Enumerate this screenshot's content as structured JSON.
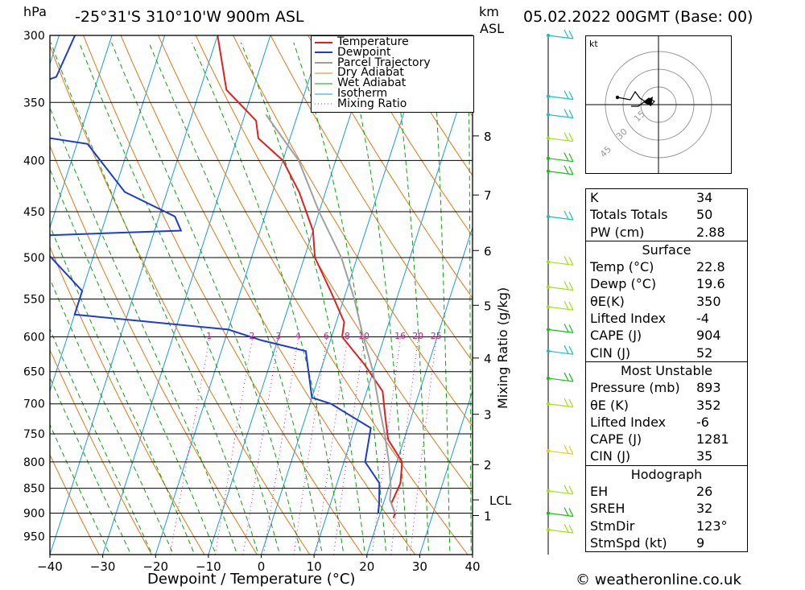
{
  "header": {
    "hpa_unit": "hPa",
    "location": "-25°31'S 310°10'W 900m ASL",
    "km_unit": "km",
    "asl_unit": "ASL",
    "datetime": "05.02.2022 00GMT (Base: 00)"
  },
  "footer": {
    "copyright": "© weatheronline.co.uk"
  },
  "colors": {
    "temperature": "#e02020",
    "dewpoint": "#1c3cd0",
    "parcel": "#a0a0a0",
    "dry_adiabat": "#e07818",
    "wet_adiabat": "#10a010",
    "isotherm": "#1c9ad8",
    "mixing_ratio": "#d0189c",
    "wind_cyan": "#18c0c0",
    "wind_green": "#18c018",
    "wind_lime": "#a0e018",
    "wind_yellow": "#e0d010"
  },
  "chart_data": [
    {
      "type": "line",
      "subtype": "skew-t log-p sounding",
      "xlabel": "Dewpoint / Temperature (°C)",
      "ylabel": "hPa",
      "mixing_ratio_axis_label": "Mixing Ratio (g/kg)",
      "xlim": [
        -40,
        40
      ],
      "ylim_hpa": [
        990,
        300
      ],
      "x_ticks": [
        "−40",
        "−30",
        "−20",
        "−10",
        "0",
        "10",
        "20",
        "30",
        "40"
      ],
      "pressure_levels": [
        300,
        350,
        400,
        450,
        500,
        550,
        600,
        650,
        700,
        750,
        800,
        850,
        900,
        950
      ],
      "km_ticks": [
        {
          "label": "8",
          "p": 378
        },
        {
          "label": "7",
          "p": 433
        },
        {
          "label": "6",
          "p": 492
        },
        {
          "label": "5",
          "p": 558
        },
        {
          "label": "4",
          "p": 630
        },
        {
          "label": "3",
          "p": 717
        },
        {
          "label": "2",
          "p": 805
        },
        {
          "label": "1",
          "p": 905
        }
      ],
      "lcl": {
        "label": "LCL",
        "p": 873
      },
      "mixing_ratio_labels": [
        "1",
        "2",
        "3",
        "4",
        "6",
        "8",
        "10",
        "16",
        "20",
        "25"
      ],
      "legend": [
        "Temperature",
        "Dewpoint",
        "Parcel Trajectory",
        "Dry Adiabat",
        "Wet Adiabat",
        "Isotherm",
        "Mixing Ratio"
      ],
      "series": [
        {
          "name": "Temperature",
          "points": [
            {
              "p": 300,
              "t": -40
            },
            {
              "p": 340,
              "t": -35
            },
            {
              "p": 365,
              "t": -27.5
            },
            {
              "p": 380,
              "t": -26
            },
            {
              "p": 400,
              "t": -20
            },
            {
              "p": 430,
              "t": -15
            },
            {
              "p": 470,
              "t": -10
            },
            {
              "p": 500,
              "t": -8
            },
            {
              "p": 540,
              "t": -3
            },
            {
              "p": 580,
              "t": 1.5
            },
            {
              "p": 600,
              "t": 2
            },
            {
              "p": 640,
              "t": 8
            },
            {
              "p": 680,
              "t": 13
            },
            {
              "p": 720,
              "t": 15
            },
            {
              "p": 760,
              "t": 17
            },
            {
              "p": 800,
              "t": 21
            },
            {
              "p": 840,
              "t": 22
            },
            {
              "p": 880,
              "t": 21.5
            },
            {
              "p": 900,
              "t": 22.8
            },
            {
              "p": 910,
              "t": 22.8
            }
          ]
        },
        {
          "name": "Dewpoint",
          "points": [
            {
              "p": 300,
              "t": -67
            },
            {
              "p": 330,
              "t": -68
            },
            {
              "p": 350,
              "t": -80
            },
            {
              "p": 365,
              "t": -88
            },
            {
              "p": 385,
              "t": -58
            },
            {
              "p": 430,
              "t": -48
            },
            {
              "p": 455,
              "t": -37
            },
            {
              "p": 470,
              "t": -35
            },
            {
              "p": 475,
              "t": -60
            },
            {
              "p": 490,
              "t": -60
            },
            {
              "p": 540,
              "t": -50
            },
            {
              "p": 570,
              "t": -50
            },
            {
              "p": 590,
              "t": -20
            },
            {
              "p": 605,
              "t": -13
            },
            {
              "p": 620,
              "t": -4
            },
            {
              "p": 690,
              "t": 0
            },
            {
              "p": 700,
              "t": 4
            },
            {
              "p": 740,
              "t": 13
            },
            {
              "p": 800,
              "t": 14
            },
            {
              "p": 840,
              "t": 18
            },
            {
              "p": 880,
              "t": 19.2
            },
            {
              "p": 900,
              "t": 19.6
            }
          ]
        },
        {
          "name": "Parcel Trajectory",
          "points": [
            {
              "p": 360,
              "t": -26
            },
            {
              "p": 400,
              "t": -17
            },
            {
              "p": 450,
              "t": -10
            },
            {
              "p": 500,
              "t": -3
            },
            {
              "p": 550,
              "t": 2
            },
            {
              "p": 600,
              "t": 6
            },
            {
              "p": 650,
              "t": 10
            },
            {
              "p": 700,
              "t": 13
            },
            {
              "p": 750,
              "t": 16
            },
            {
              "p": 800,
              "t": 18.5
            },
            {
              "p": 850,
              "t": 20.5
            },
            {
              "p": 873,
              "t": 21
            },
            {
              "p": 900,
              "t": 22.8
            }
          ]
        }
      ]
    },
    {
      "type": "scatter",
      "subtype": "hodograph",
      "unit_label": "kt",
      "ring_labels": [
        "15",
        "30",
        "45"
      ]
    }
  ],
  "indices": {
    "rows": [
      {
        "label": "K",
        "value": "34"
      },
      {
        "label": "Totals Totals",
        "value": "50"
      },
      {
        "label": "PW (cm)",
        "value": "2.88"
      }
    ]
  },
  "surface": {
    "title": "Surface",
    "rows": [
      {
        "label": "Temp (°C)",
        "value": "22.8"
      },
      {
        "label": "Dewp (°C)",
        "value": "19.6"
      },
      {
        "label": "θE(K)",
        "value": "350"
      },
      {
        "label": "Lifted Index",
        "value": "-4"
      },
      {
        "label": "CAPE (J)",
        "value": "904"
      },
      {
        "label": "CIN (J)",
        "value": "52"
      }
    ]
  },
  "most_unstable": {
    "title": "Most Unstable",
    "rows": [
      {
        "label": "Pressure (mb)",
        "value": "893"
      },
      {
        "label": "θE (K)",
        "value": "352"
      },
      {
        "label": "Lifted Index",
        "value": "-6"
      },
      {
        "label": "CAPE (J)",
        "value": "1281"
      },
      {
        "label": "CIN (J)",
        "value": "35"
      }
    ]
  },
  "hodograph_table": {
    "title": "Hodograph",
    "rows": [
      {
        "label": "EH",
        "value": "26"
      },
      {
        "label": "SREH",
        "value": "32"
      },
      {
        "label": "StmDir",
        "value": "123°"
      },
      {
        "label": "StmSpd (kt)",
        "value": "9"
      }
    ]
  },
  "wind_profile": [
    {
      "p": 300,
      "color": "cyan"
    },
    {
      "p": 345,
      "color": "cyan"
    },
    {
      "p": 360,
      "color": "cyan"
    },
    {
      "p": 380,
      "color": "lime"
    },
    {
      "p": 398,
      "color": "green"
    },
    {
      "p": 410,
      "color": "green"
    },
    {
      "p": 455,
      "color": "cyan"
    },
    {
      "p": 505,
      "color": "lime"
    },
    {
      "p": 535,
      "color": "lime"
    },
    {
      "p": 560,
      "color": "lime"
    },
    {
      "p": 590,
      "color": "green"
    },
    {
      "p": 620,
      "color": "cyan"
    },
    {
      "p": 660,
      "color": "green"
    },
    {
      "p": 700,
      "color": "lime"
    },
    {
      "p": 780,
      "color": "yellow"
    },
    {
      "p": 855,
      "color": "lime"
    },
    {
      "p": 900,
      "color": "green"
    },
    {
      "p": 935,
      "color": "lime"
    }
  ]
}
